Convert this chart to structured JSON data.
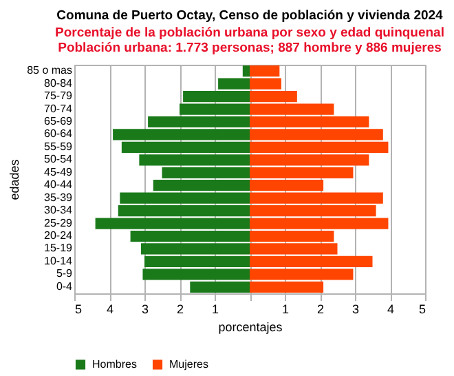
{
  "chart_data": {
    "type": "bar",
    "orientation": "horizontal",
    "title": "Comuna de Puerto Octay, Censo de población y vivienda 2024",
    "subtitle": "Porcentaje de la población urbana por sexo y edad quinquenal\nPoblación urbana: 1.773 personas; 887 hombre y 886 mujeres",
    "xlabel": "porcentajes",
    "ylabel": "edades",
    "categories": [
      "85 o mas",
      "80-84",
      "75-79",
      "70-74",
      "65-69",
      "60-64",
      "55-59",
      "50-54",
      "45-49",
      "40-44",
      "35-39",
      "30-34",
      "25-29",
      "20-24",
      "15-19",
      "10-14",
      "5-9",
      "0-4"
    ],
    "series": [
      {
        "name": "Hombres",
        "color": "#1a7a1a",
        "values": [
          -0.2,
          -0.9,
          -1.9,
          -2.0,
          -2.9,
          -3.9,
          -3.65,
          -3.15,
          -2.5,
          -2.75,
          -3.7,
          -3.75,
          -4.4,
          -3.4,
          -3.1,
          -3.0,
          -3.05,
          -1.7
        ]
      },
      {
        "name": "Mujeres",
        "color": "#ff4500",
        "values": [
          0.85,
          0.9,
          1.35,
          2.4,
          3.4,
          3.8,
          3.95,
          3.4,
          2.95,
          2.1,
          3.8,
          3.6,
          3.95,
          2.4,
          2.5,
          3.5,
          2.95,
          2.1
        ]
      }
    ],
    "xlim": [
      -5,
      5
    ],
    "xticks": [
      {
        "value": -5,
        "label": "5"
      },
      {
        "value": -4,
        "label": "4"
      },
      {
        "value": -3,
        "label": "3"
      },
      {
        "value": -2,
        "label": "2"
      },
      {
        "value": -1,
        "label": "1"
      },
      {
        "value": 0,
        "label": null
      },
      1,
      2,
      3,
      4,
      5
    ],
    "stacked": true,
    "grid": "x",
    "legend": "bottom"
  }
}
